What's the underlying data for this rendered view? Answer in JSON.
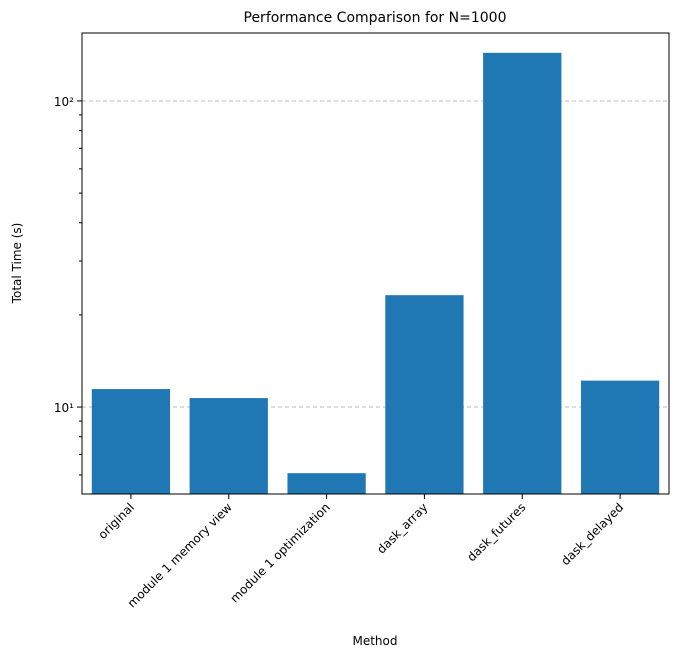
{
  "chart_data": {
    "type": "bar",
    "title": "Performance Comparison for N=1000",
    "xlabel": "Method",
    "ylabel": "Total Time (s)",
    "categories": [
      "original",
      "module 1 memory view",
      "module 1 optimization",
      "dask_array",
      "dask_futures",
      "dask_delayed"
    ],
    "values": [
      11.45,
      10.7,
      6.08,
      23.2,
      143.6,
      12.2
    ],
    "color": "#1f77b4",
    "yscale": "log",
    "ylim": [
      5.2,
      166.7
    ],
    "yticks": [
      {
        "value": 10,
        "label": "10¹"
      },
      {
        "value": 100,
        "label": "10²"
      }
    ],
    "yminorticks": [
      6,
      7,
      8,
      9,
      20,
      30,
      40,
      50,
      60,
      70,
      80,
      90
    ],
    "grid": true
  }
}
